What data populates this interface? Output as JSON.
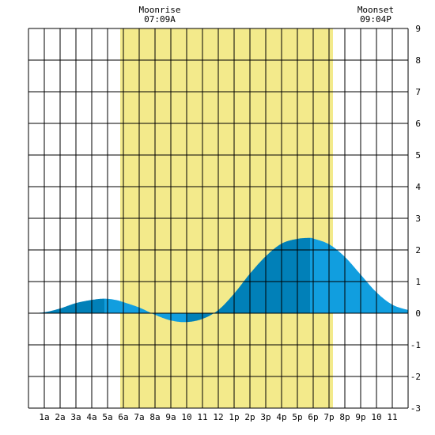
{
  "chart_data": {
    "type": "area",
    "title": "",
    "xlabel": "",
    "ylabel": "",
    "x_range": [
      0,
      24
    ],
    "ylim": [
      -3,
      9
    ],
    "y_ticks": [
      -3,
      -2,
      -1,
      0,
      1,
      2,
      3,
      4,
      5,
      6,
      7,
      8,
      9
    ],
    "x_ticks": [
      {
        "x": 1,
        "label": "1a"
      },
      {
        "x": 2,
        "label": "2a"
      },
      {
        "x": 3,
        "label": "3a"
      },
      {
        "x": 4,
        "label": "4a"
      },
      {
        "x": 5,
        "label": "5a"
      },
      {
        "x": 6,
        "label": "6a"
      },
      {
        "x": 7,
        "label": "7a"
      },
      {
        "x": 8,
        "label": "8a"
      },
      {
        "x": 9,
        "label": "9a"
      },
      {
        "x": 10,
        "label": "10"
      },
      {
        "x": 11,
        "label": "11"
      },
      {
        "x": 12,
        "label": "12"
      },
      {
        "x": 13,
        "label": "1p"
      },
      {
        "x": 14,
        "label": "2p"
      },
      {
        "x": 15,
        "label": "3p"
      },
      {
        "x": 16,
        "label": "4p"
      },
      {
        "x": 17,
        "label": "5p"
      },
      {
        "x": 18,
        "label": "6p"
      },
      {
        "x": 19,
        "label": "7p"
      },
      {
        "x": 20,
        "label": "8p"
      },
      {
        "x": 21,
        "label": "9p"
      },
      {
        "x": 22,
        "label": "10"
      },
      {
        "x": 23,
        "label": "11"
      }
    ],
    "grid": true,
    "daylight_band": {
      "start": 5.8,
      "end": 19.25,
      "color": "#f3ea8b"
    },
    "moon": {
      "rise": {
        "label": "Moonrise",
        "time": "07:09A"
      },
      "set": {
        "label": "Moonset",
        "time": "09:04P"
      }
    },
    "series": [
      {
        "x": [
          0,
          1,
          2,
          3,
          4,
          4.8,
          5.5,
          6,
          7,
          8,
          9,
          10,
          11,
          12,
          13,
          14,
          15,
          16,
          17,
          17.8,
          18,
          19,
          20,
          21,
          22,
          23,
          24
        ],
        "values": [
          0.0,
          0.03,
          0.15,
          0.32,
          0.42,
          0.46,
          0.42,
          0.35,
          0.18,
          -0.05,
          -0.23,
          -0.28,
          -0.18,
          0.1,
          0.62,
          1.25,
          1.8,
          2.2,
          2.35,
          2.38,
          2.36,
          2.18,
          1.78,
          1.22,
          0.66,
          0.27,
          0.1
        ]
      }
    ],
    "extrema": [
      {
        "x": 4.8,
        "y": 0.46,
        "kind": "high"
      },
      {
        "x": 10,
        "y": -0.28,
        "kind": "low"
      },
      {
        "x": 17.8,
        "y": 2.38,
        "kind": "high"
      }
    ],
    "colors": {
      "fill_light": "#119edf",
      "fill_dark": "#0180b8",
      "grid": "#000000",
      "background": "#ffffff"
    }
  }
}
